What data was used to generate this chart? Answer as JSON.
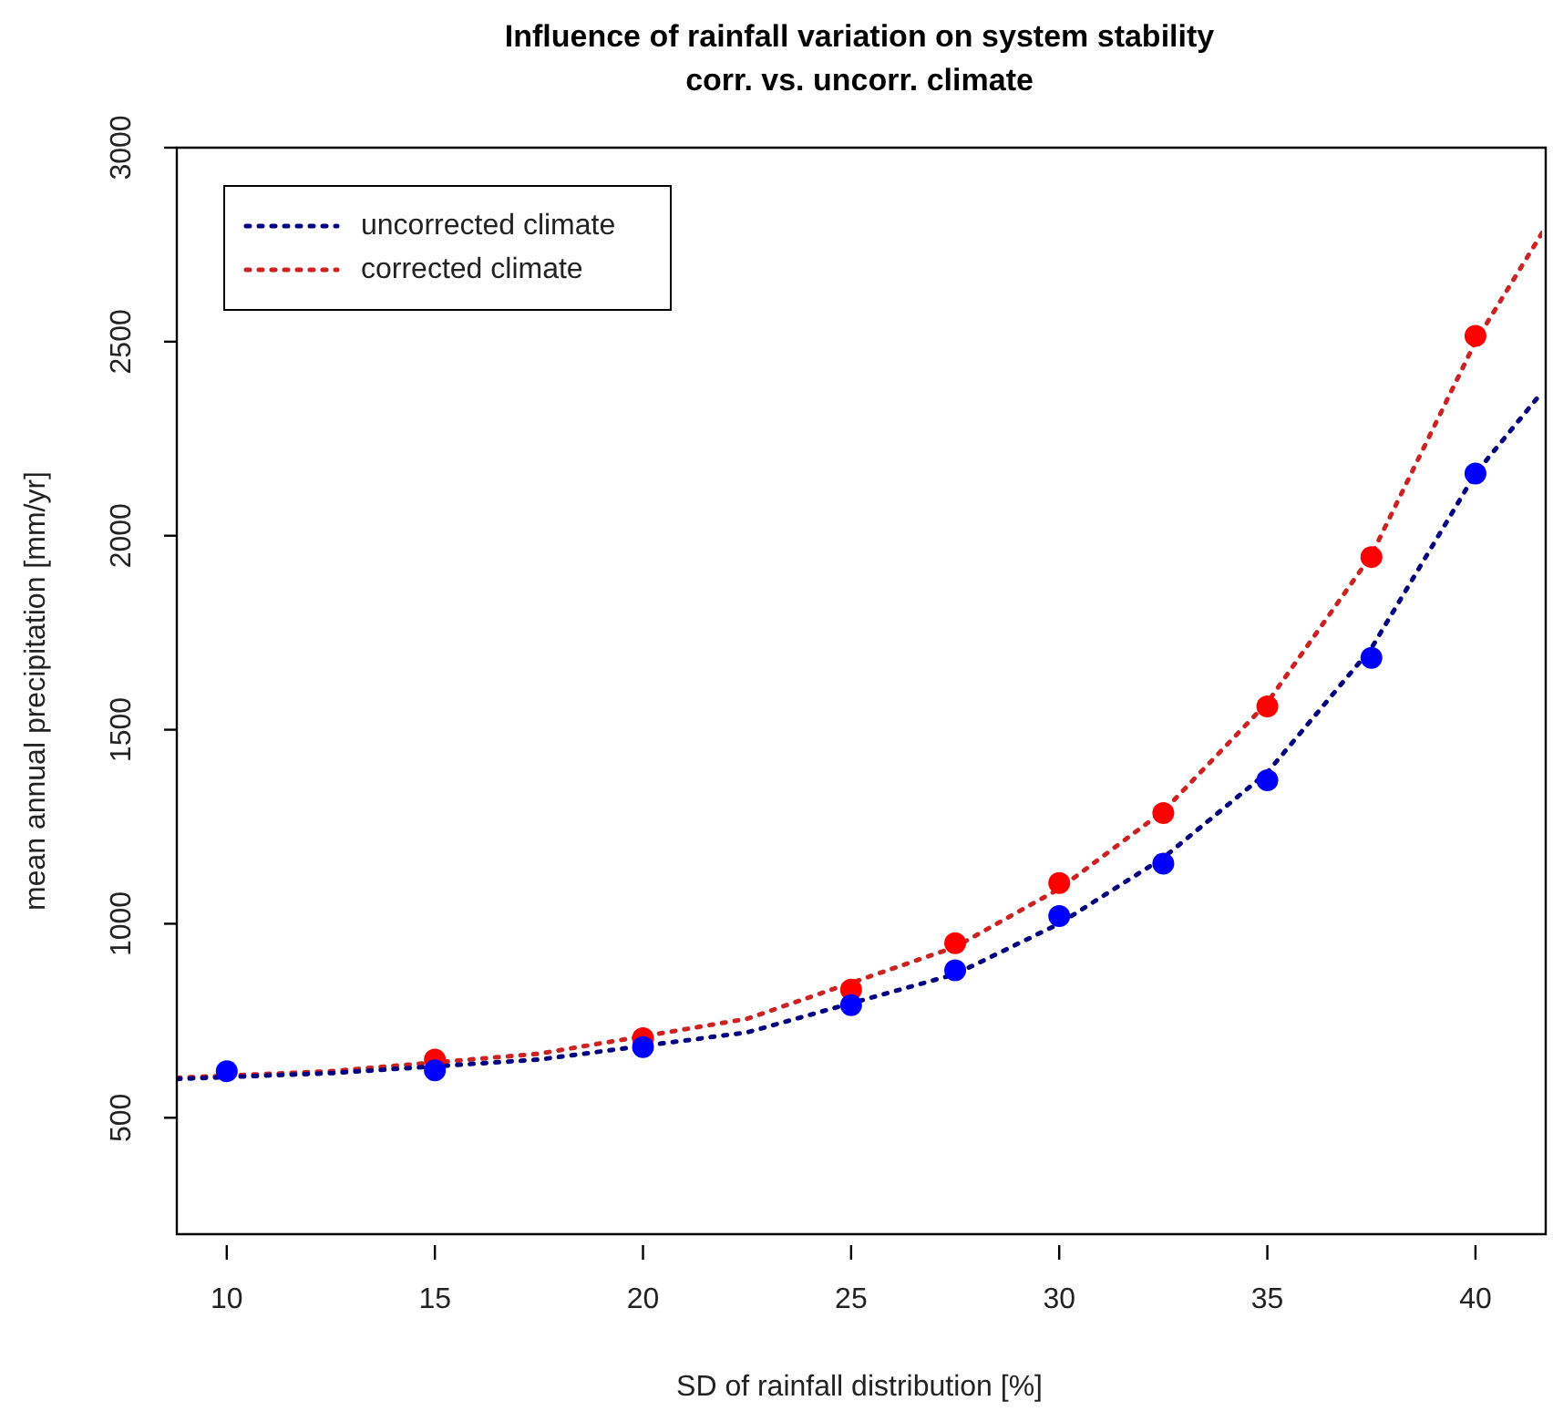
{
  "chart_data": {
    "type": "scatter",
    "title": "Influence of rainfall variation on system stability\ncorr. vs. uncorr. climate",
    "xlabel": "SD of rainfall distribution [%]",
    "ylabel": "mean annual precipitation [mm/yr]",
    "xlim": [
      8.8,
      41.6
    ],
    "xticks": [
      10,
      15,
      20,
      25,
      30,
      35,
      40
    ],
    "ylim": [
      200,
      3000
    ],
    "yticks": [
      500,
      1000,
      1500,
      2000,
      2500,
      3000
    ],
    "grid": false,
    "legend": "top left",
    "marker": "circle",
    "series": [
      {
        "type": "scatter",
        "color": "#0000ff",
        "x": [
          10,
          15,
          20,
          25,
          27.5,
          30,
          32.5,
          35,
          37.5,
          40
        ],
        "values": [
          620,
          622,
          682,
          790,
          880,
          1020,
          1155,
          1370,
          1685,
          2160
        ]
      },
      {
        "type": "scatter",
        "color": "#ff0000",
        "x": [
          15,
          20,
          25,
          27.5,
          30,
          32.5,
          35,
          37.5,
          40
        ],
        "values": [
          650,
          705,
          830,
          950,
          1105,
          1285,
          1560,
          1945,
          2515
        ]
      },
      {
        "type": "line",
        "name": "uncorrected climate",
        "color": "#000080",
        "line_style": "dotted",
        "marker": "none",
        "x": [
          8.8,
          12.5,
          17.5,
          22.5,
          27.5,
          30,
          32.5,
          35,
          37.5,
          40,
          41.6
        ],
        "values": [
          600,
          615,
          650,
          720,
          870,
          1000,
          1170,
          1390,
          1710,
          2160,
          2370
        ]
      },
      {
        "type": "line",
        "name": "corrected climate",
        "color": "#cc2222",
        "line_style": "dotted",
        "marker": "none",
        "x": [
          8.8,
          12.5,
          17.5,
          22.5,
          27.5,
          30,
          32.5,
          35,
          37.5,
          40,
          41.6
        ],
        "values": [
          603,
          620,
          665,
          755,
          940,
          1090,
          1290,
          1570,
          1950,
          2500,
          2780
        ]
      }
    ]
  }
}
